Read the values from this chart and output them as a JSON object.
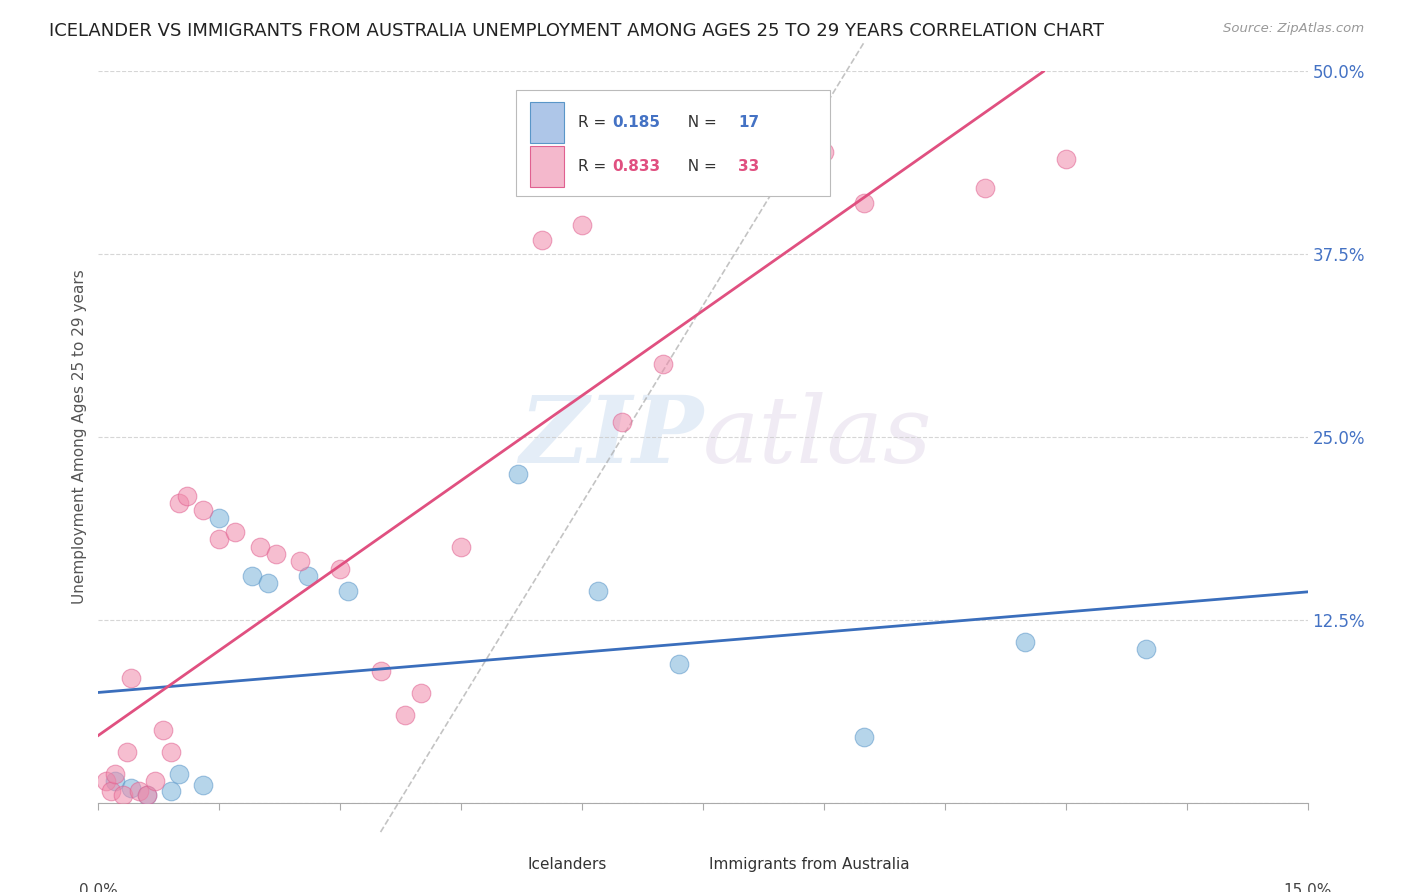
{
  "title": "ICELANDER VS IMMIGRANTS FROM AUSTRALIA UNEMPLOYMENT AMONG AGES 25 TO 29 YEARS CORRELATION CHART",
  "source": "Source: ZipAtlas.com",
  "ylabel": "Unemployment Among Ages 25 to 29 years",
  "xlim": [
    0,
    15
  ],
  "ylim": [
    0,
    50
  ],
  "yticks": [
    0,
    12.5,
    25.0,
    37.5,
    50.0
  ],
  "ytick_labels": [
    "",
    "12.5%",
    "25.0%",
    "37.5%",
    "50.0%"
  ],
  "blue_color": "#7ab3d9",
  "blue_edge": "#5a96c8",
  "pink_color": "#f08aaa",
  "pink_edge": "#e06090",
  "blue_line_color": "#3a6ebc",
  "pink_line_color": "#e05080",
  "blue_label": "Icelanders",
  "pink_label": "Immigrants from Australia",
  "R_blue": 0.185,
  "N_blue": 17,
  "R_pink": 0.833,
  "N_pink": 33,
  "blue_scatter": [
    [
      0.2,
      1.5
    ],
    [
      0.4,
      1.0
    ],
    [
      0.6,
      0.5
    ],
    [
      0.9,
      0.8
    ],
    [
      1.0,
      2.0
    ],
    [
      1.3,
      1.2
    ],
    [
      1.5,
      19.5
    ],
    [
      1.9,
      15.5
    ],
    [
      2.1,
      15.0
    ],
    [
      2.6,
      15.5
    ],
    [
      3.1,
      14.5
    ],
    [
      5.2,
      22.5
    ],
    [
      6.2,
      14.5
    ],
    [
      7.2,
      9.5
    ],
    [
      9.5,
      4.5
    ],
    [
      11.5,
      11.0
    ],
    [
      13.0,
      10.5
    ]
  ],
  "pink_scatter": [
    [
      0.1,
      1.5
    ],
    [
      0.15,
      0.8
    ],
    [
      0.2,
      2.0
    ],
    [
      0.3,
      0.5
    ],
    [
      0.35,
      3.5
    ],
    [
      0.4,
      8.5
    ],
    [
      0.5,
      0.8
    ],
    [
      0.6,
      0.5
    ],
    [
      0.7,
      1.5
    ],
    [
      0.8,
      5.0
    ],
    [
      0.9,
      3.5
    ],
    [
      1.0,
      20.5
    ],
    [
      1.1,
      21.0
    ],
    [
      1.3,
      20.0
    ],
    [
      1.5,
      18.0
    ],
    [
      1.7,
      18.5
    ],
    [
      2.0,
      17.5
    ],
    [
      2.2,
      17.0
    ],
    [
      2.5,
      16.5
    ],
    [
      3.0,
      16.0
    ],
    [
      3.5,
      9.0
    ],
    [
      3.8,
      6.0
    ],
    [
      4.0,
      7.5
    ],
    [
      4.5,
      17.5
    ],
    [
      5.5,
      38.5
    ],
    [
      6.0,
      39.5
    ],
    [
      6.5,
      26.0
    ],
    [
      7.0,
      30.0
    ],
    [
      8.5,
      47.5
    ],
    [
      9.0,
      44.5
    ],
    [
      9.5,
      41.0
    ],
    [
      11.0,
      42.0
    ],
    [
      12.0,
      44.0
    ]
  ],
  "background_color": "#ffffff",
  "grid_color": "#cccccc",
  "watermark_zip": "ZIP",
  "watermark_atlas": "atlas",
  "title_fontsize": 13,
  "axis_label_fontsize": 11,
  "tick_label_color": "#4472c4",
  "legend_box_color_blue": "#aec6e8",
  "legend_box_color_pink": "#f4b8cc"
}
